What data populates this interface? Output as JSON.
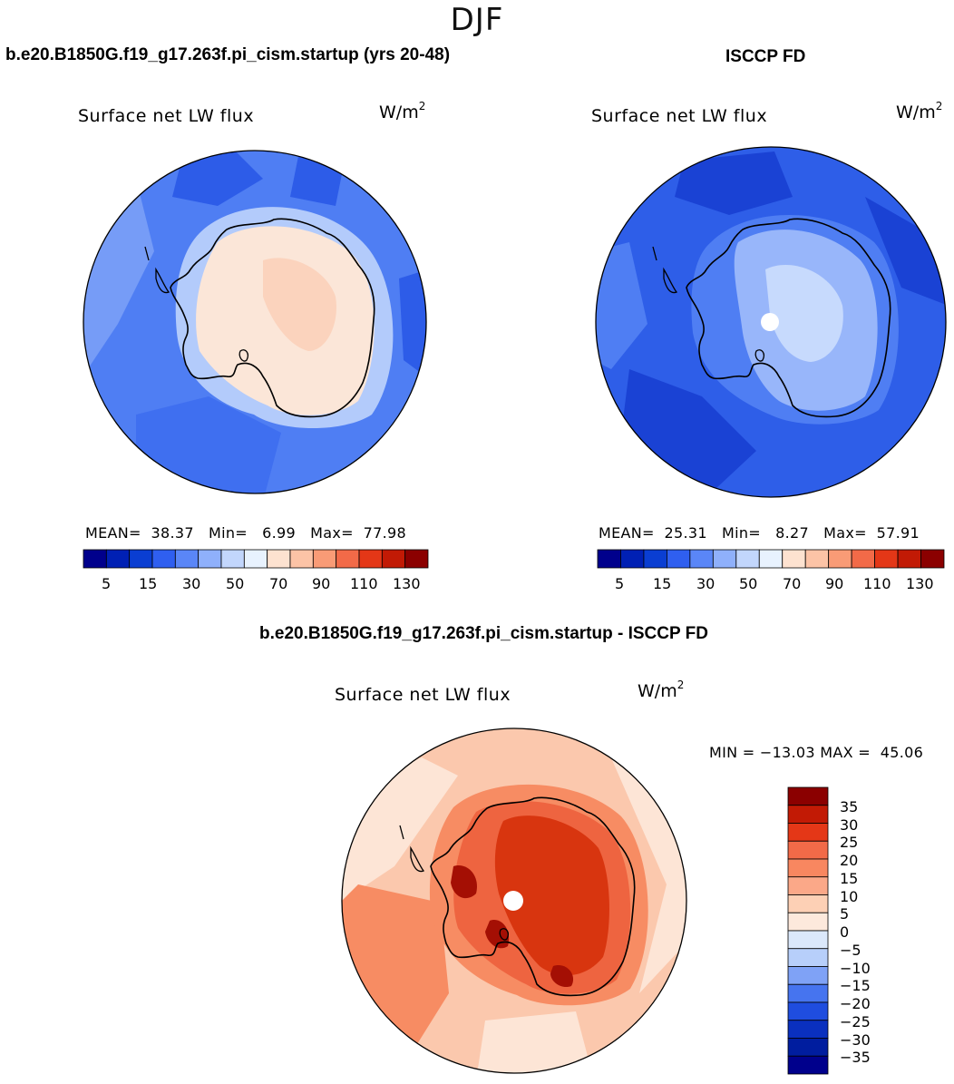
{
  "season": "DJF",
  "panels": [
    {
      "title": "b.e20.B1850G.f19_g17.263f.pi_cism.startup (yrs 20-48)",
      "plot_label": "Surface net LW flux",
      "units": "W/m",
      "units_exp": "2",
      "mean_label": "MEAN=",
      "mean": "38.37",
      "min_label": "Min=",
      "min": "6.99",
      "max_label": "Max=",
      "max": "77.98",
      "colorbar_ticks": [
        "5",
        "15",
        "30",
        "50",
        "70",
        "90",
        "110",
        "130"
      ]
    },
    {
      "title": "ISCCP FD",
      "plot_label": "Surface net LW flux",
      "units": "W/m",
      "units_exp": "2",
      "mean_label": "MEAN=",
      "mean": "25.31",
      "min_label": "Min=",
      "min": "8.27",
      "max_label": "Max=",
      "max": "57.91",
      "colorbar_ticks": [
        "5",
        "15",
        "30",
        "50",
        "70",
        "90",
        "110",
        "130"
      ]
    }
  ],
  "diff_panel": {
    "title": "b.e20.B1850G.f19_g17.263f.pi_cism.startup - ISCCP FD",
    "plot_label": "Surface net LW flux",
    "units": "W/m",
    "units_exp": "2",
    "min_label": "MIN =",
    "min": "−13.03",
    "max_label": "MAX =",
    "max": "45.06",
    "colorbar_ticks": [
      "35",
      "30",
      "25",
      "20",
      "15",
      "10",
      "5",
      "0",
      "−5",
      "−10",
      "−15",
      "−20",
      "−25",
      "−30",
      "−35"
    ]
  },
  "colors": {
    "abs_scale": [
      "#00008c",
      "#0020b4",
      "#0a3ed2",
      "#2f5ff0",
      "#5a86f7",
      "#8fb0fb",
      "#c2d6fc",
      "#e8f2fe",
      "#fde2d0",
      "#fcc3a6",
      "#f99b76",
      "#f26a48",
      "#e43717",
      "#c21a05",
      "#8b0000"
    ],
    "diff_scale": [
      "#8b0000",
      "#c21a05",
      "#e43717",
      "#f26a48",
      "#f88760",
      "#fba888",
      "#fdd0b5",
      "#fde9dc",
      "#dbe8fb",
      "#b7cffa",
      "#7fa2f6",
      "#4674ef",
      "#1f4ddf",
      "#0a30bf",
      "#001d9f",
      "#00008c"
    ],
    "panel1_ocean": "#4f7ef3",
    "panel1_ocean_light": "#7aa0f7",
    "panel1_ocean_dark": "#2d5ce8",
    "panel1_land": "#fbe6d8",
    "panel1_land_warm": "#fbd3bd",
    "panel1_coast": "#b3cbfb",
    "panel2_ocean": "#2e5ee8",
    "panel2_ocean_dark": "#1a42d4",
    "panel2_land": "#98b6fa",
    "panel2_land_light": "#c7dafd",
    "panel3_ocean": "#fbc8ad",
    "panel3_ocean_light": "#fde5d6",
    "panel3_ocean_warm": "#f78c63",
    "panel3_land": "#ee6440",
    "panel3_land_hot": "#d8350f",
    "panel3_land_max": "#a40f04"
  }
}
